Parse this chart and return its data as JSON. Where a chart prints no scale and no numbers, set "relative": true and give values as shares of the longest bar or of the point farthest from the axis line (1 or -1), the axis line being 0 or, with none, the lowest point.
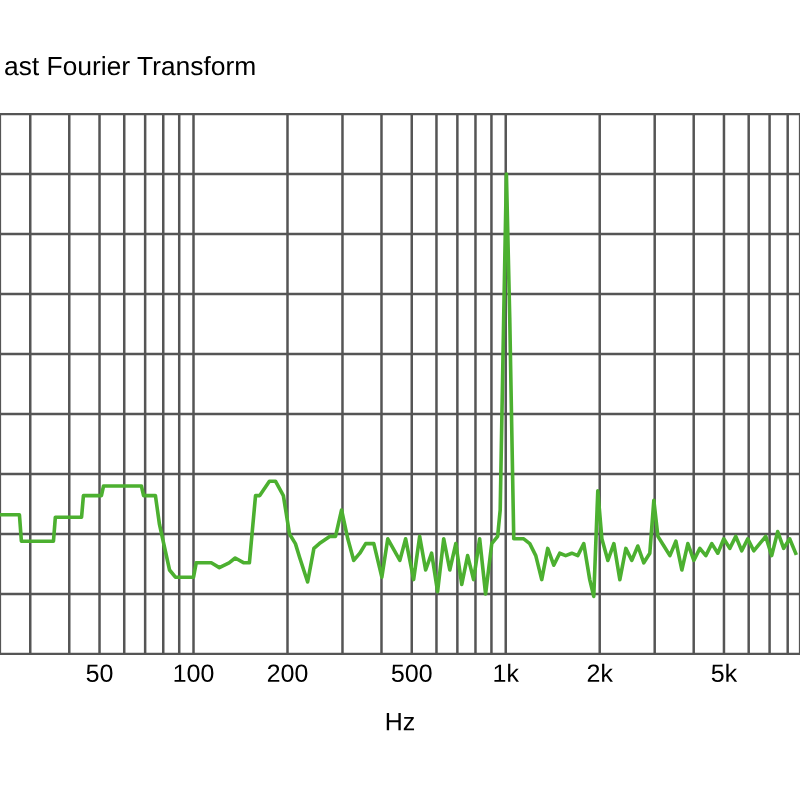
{
  "chart_data": {
    "type": "line",
    "title": "ast Fourier Transform",
    "xlabel": "Hz",
    "relative": true,
    "log": "x",
    "grid": true,
    "marker": "none",
    "line_style": "solid",
    "xlim": [
      24,
      8760
    ],
    "xticks": [
      {
        "value": 30,
        "label": null
      },
      {
        "value": 40,
        "label": null
      },
      50,
      {
        "value": 60,
        "label": null
      },
      {
        "value": 70,
        "label": null
      },
      {
        "value": 80,
        "label": null
      },
      {
        "value": 90,
        "label": null
      },
      100,
      200,
      {
        "value": 300,
        "label": null
      },
      {
        "value": 400,
        "label": null
      },
      500,
      {
        "value": 600,
        "label": null
      },
      {
        "value": 700,
        "label": null
      },
      {
        "value": 800,
        "label": null
      },
      {
        "value": 900,
        "label": null
      },
      {
        "value": 1000,
        "label": "1k"
      },
      {
        "value": 2000,
        "label": "2k"
      },
      {
        "value": 3000,
        "label": null
      },
      {
        "value": 4000,
        "label": null
      },
      {
        "value": 5000,
        "label": "5k"
      },
      {
        "value": 6000,
        "label": null
      },
      {
        "value": 7000,
        "label": null
      },
      {
        "value": 8000,
        "label": null
      }
    ],
    "series": [
      {
        "color": "#4cb030",
        "x": [
          24,
          27.7,
          28.1,
          35.6,
          36.1,
          43.8,
          44.4,
          50.7,
          51.5,
          68.1,
          69.2,
          75.5,
          77.8,
          83.8,
          87.5,
          100,
          102,
          114,
          121,
          130,
          136,
          145,
          151,
          158,
          163,
          175,
          183,
          194,
          203,
          212,
          219,
          232,
          243,
          253,
          273,
          285,
          298,
          312,
          326,
          341,
          356,
          378,
          401,
          419,
          458,
          478,
          507,
          530,
          554,
          579,
          605,
          633,
          662,
          692,
          723,
          755,
          789,
          825,
          862,
          902,
          942,
          960,
          985,
          1005,
          1030,
          1061,
          1093,
          1142,
          1194,
          1248,
          1304,
          1363,
          1425,
          1489,
          1556,
          1628,
          1701,
          1778,
          1858,
          1914,
          1972,
          2032,
          2124,
          2220,
          2320,
          2425,
          2534,
          2649,
          2768,
          2894,
          2981,
          3072,
          3211,
          3356,
          3507,
          3665,
          3831,
          4004,
          4185,
          4374,
          4571,
          4778,
          4994,
          5219,
          5455,
          5701,
          5959,
          6228,
          6509,
          6803,
          7110,
          7431,
          7766,
          8117,
          8484
        ],
        "values": [
          0.29,
          0.29,
          0.235,
          0.235,
          0.285,
          0.285,
          0.33,
          0.33,
          0.35,
          0.35,
          0.33,
          0.33,
          0.27,
          0.175,
          0.16,
          0.16,
          0.19,
          0.19,
          0.18,
          0.19,
          0.2,
          0.19,
          0.19,
          0.33,
          0.33,
          0.36,
          0.36,
          0.33,
          0.25,
          0.23,
          0.2,
          0.15,
          0.22,
          0.23,
          0.245,
          0.245,
          0.3,
          0.24,
          0.195,
          0.21,
          0.23,
          0.23,
          0.16,
          0.24,
          0.195,
          0.24,
          0.155,
          0.245,
          0.175,
          0.21,
          0.13,
          0.24,
          0.175,
          0.23,
          0.145,
          0.205,
          0.155,
          0.24,
          0.125,
          0.23,
          0.245,
          0.3,
          0.7,
          1.0,
          0.7,
          0.24,
          0.24,
          0.24,
          0.23,
          0.205,
          0.155,
          0.22,
          0.185,
          0.21,
          0.205,
          0.21,
          0.205,
          0.23,
          0.155,
          0.12,
          0.34,
          0.24,
          0.195,
          0.23,
          0.155,
          0.22,
          0.195,
          0.225,
          0.19,
          0.21,
          0.32,
          0.245,
          0.225,
          0.205,
          0.235,
          0.175,
          0.23,
          0.195,
          0.22,
          0.205,
          0.23,
          0.21,
          0.24,
          0.22,
          0.245,
          0.215,
          0.24,
          0.215,
          0.23,
          0.245,
          0.205,
          0.255,
          0.22,
          0.24,
          0.21
        ]
      }
    ]
  }
}
